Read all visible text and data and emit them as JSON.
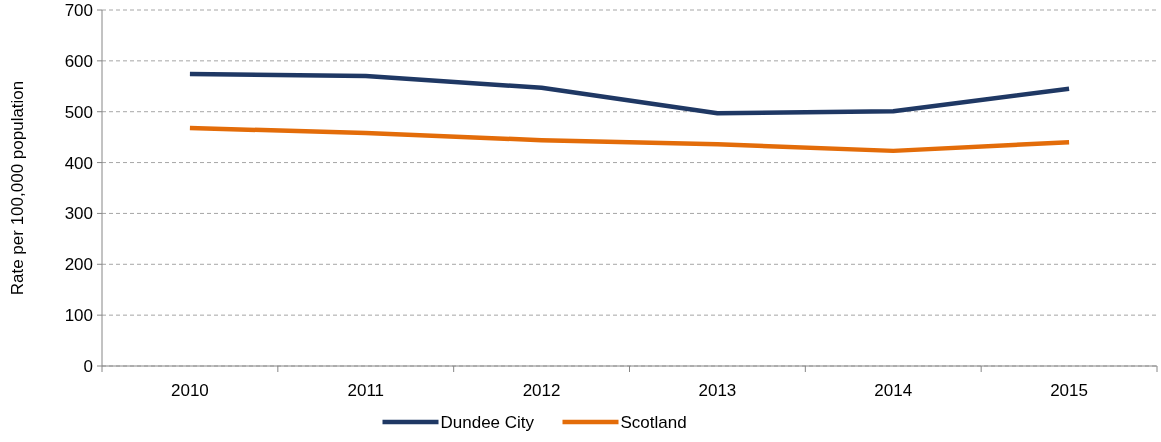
{
  "chart_data": {
    "type": "line",
    "ylabel": "Rate per 100,000 population",
    "categories": [
      "2010",
      "2011",
      "2012",
      "2013",
      "2014",
      "2015"
    ],
    "series": [
      {
        "name": "Dundee City",
        "color": "#1f3864",
        "values": [
          574,
          570,
          547,
          497,
          501,
          545
        ]
      },
      {
        "name": "Scotland",
        "color": "#e36c09",
        "values": [
          468,
          458,
          444,
          436,
          423,
          440
        ]
      }
    ],
    "ylim": [
      0,
      700
    ],
    "yticks": [
      0,
      100,
      200,
      300,
      400,
      500,
      600,
      700
    ],
    "grid": "y",
    "legend": "bottom",
    "marker": "none",
    "line_style": "solid"
  }
}
